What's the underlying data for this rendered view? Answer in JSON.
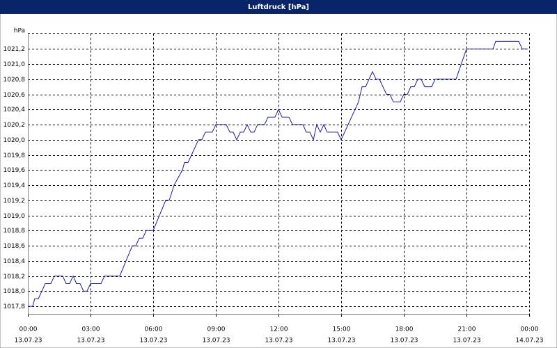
{
  "chart_data": {
    "type": "line",
    "title": "Luftdruck [hPa]",
    "y_label": "hPa",
    "x": [
      0,
      0.23,
      0.33,
      0.5,
      0.67,
      0.83,
      1.1,
      1.27,
      1.67,
      1.83,
      2,
      2.17,
      2.33,
      2.5,
      2.67,
      2.83,
      3,
      3.5,
      3.67,
      4.4,
      5,
      5.17,
      5.33,
      5.5,
      5.67,
      6,
      6.6,
      6.77,
      7,
      7.4,
      7.5,
      7.67,
      8.17,
      8.33,
      8.5,
      8.83,
      9,
      9.5,
      9.67,
      9.83,
      10,
      10.17,
      10.33,
      10.5,
      10.67,
      10.83,
      11,
      11.33,
      11.5,
      11.83,
      12,
      12.17,
      12.5,
      12.67,
      13.17,
      13.33,
      13.5,
      13.67,
      13.83,
      14,
      14.17,
      14.33,
      14.83,
      15,
      15.83,
      16,
      16.17,
      16.5,
      16.67,
      16.83,
      17.17,
      17.33,
      17.5,
      17.83,
      18,
      18.17,
      18.33,
      18.5,
      18.67,
      18.83,
      19,
      19.33,
      19.5,
      20.5,
      21,
      22.27,
      22.4,
      23.5,
      23.67,
      23.93
    ],
    "series": [
      {
        "name": "Luftdruck",
        "color": "#1a1aa0",
        "values": [
          1017.8,
          1017.8,
          1017.9,
          1017.9,
          1018.0,
          1018.1,
          1018.1,
          1018.2,
          1018.2,
          1018.1,
          1018.1,
          1018.2,
          1018.1,
          1018.1,
          1018.0,
          1018.0,
          1018.1,
          1018.1,
          1018.2,
          1018.2,
          1018.6,
          1018.6,
          1018.7,
          1018.7,
          1018.8,
          1018.8,
          1019.2,
          1019.2,
          1019.4,
          1019.6,
          1019.7,
          1019.7,
          1020.0,
          1020.0,
          1020.1,
          1020.1,
          1020.2,
          1020.2,
          1020.1,
          1020.1,
          1020.0,
          1020.1,
          1020.1,
          1020.2,
          1020.1,
          1020.1,
          1020.2,
          1020.2,
          1020.3,
          1020.3,
          1020.4,
          1020.3,
          1020.3,
          1020.2,
          1020.2,
          1020.1,
          1020.1,
          1020.0,
          1020.2,
          1020.1,
          1020.2,
          1020.1,
          1020.1,
          1020.0,
          1020.5,
          1020.7,
          1020.7,
          1020.9,
          1020.8,
          1020.8,
          1020.6,
          1020.6,
          1020.5,
          1020.5,
          1020.6,
          1020.6,
          1020.7,
          1020.7,
          1020.8,
          1020.8,
          1020.7,
          1020.7,
          1020.8,
          1020.8,
          1021.2,
          1021.2,
          1021.3,
          1021.3,
          1021.2,
          1021.2
        ]
      }
    ],
    "xlim": [
      0,
      24
    ],
    "xticks": [
      {
        "value": 0,
        "label": "00:00"
      },
      {
        "value": 3,
        "label": "03:00"
      },
      {
        "value": 6,
        "label": "06:00"
      },
      {
        "value": 9,
        "label": "09:00"
      },
      {
        "value": 12,
        "label": "12:00"
      },
      {
        "value": 15,
        "label": "15:00"
      },
      {
        "value": 18,
        "label": "18:00"
      },
      {
        "value": 21,
        "label": "21:00"
      },
      {
        "value": 24,
        "label": "00:00"
      }
    ],
    "xtick_dates": [
      "13.07.23",
      "13.07.23",
      "13.07.23",
      "13.07.23",
      "13.07.23",
      "13.07.23",
      "13.07.23",
      "13.07.23",
      "14.07.23"
    ],
    "ylim": [
      1017.7,
      1021.4
    ],
    "yticks": [
      {
        "value": 1017.8,
        "label": "1017,8"
      },
      {
        "value": 1018.0,
        "label": "1018,0"
      },
      {
        "value": 1018.2,
        "label": "1018,2"
      },
      {
        "value": 1018.4,
        "label": "1018,4"
      },
      {
        "value": 1018.6,
        "label": "1018,6"
      },
      {
        "value": 1018.8,
        "label": "1018,8"
      },
      {
        "value": 1019.0,
        "label": "1019,0"
      },
      {
        "value": 1019.2,
        "label": "1019,2"
      },
      {
        "value": 1019.4,
        "label": "1019,4"
      },
      {
        "value": 1019.6,
        "label": "1019,6"
      },
      {
        "value": 1019.8,
        "label": "1019,8"
      },
      {
        "value": 1020.0,
        "label": "1020,0"
      },
      {
        "value": 1020.2,
        "label": "1020,2"
      },
      {
        "value": 1020.4,
        "label": "1020,4"
      },
      {
        "value": 1020.6,
        "label": "1020,6"
      },
      {
        "value": 1020.8,
        "label": "1020,8"
      },
      {
        "value": 1021.0,
        "label": "1021,0"
      },
      {
        "value": 1021.2,
        "label": "1021,2"
      }
    ],
    "grid": true
  }
}
